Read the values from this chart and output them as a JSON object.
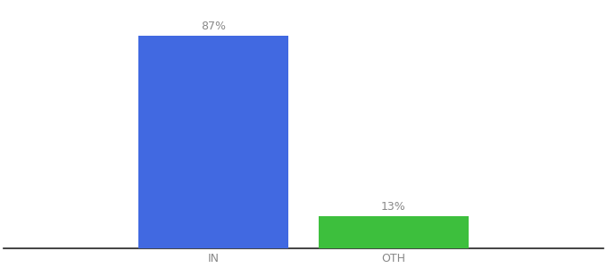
{
  "categories": [
    "IN",
    "OTH"
  ],
  "values": [
    87,
    13
  ],
  "bar_colors": [
    "#4169e1",
    "#3dbf3d"
  ],
  "value_labels": [
    "87%",
    "13%"
  ],
  "background_color": "#ffffff",
  "ylim": [
    0,
    100
  ],
  "bar_width": 0.25,
  "x_positions": [
    0.35,
    0.65
  ],
  "xlim": [
    0,
    1
  ],
  "xlabel_fontsize": 9,
  "label_fontsize": 9,
  "label_color": "#888888",
  "spine_color": "#222222"
}
